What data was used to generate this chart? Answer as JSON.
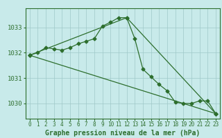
{
  "background_color": "#c8eaea",
  "grid_color": "#9fc8c8",
  "line_color": "#2d6e2d",
  "marker_color": "#2d6e2d",
  "xlabel": "Graphe pression niveau de la mer (hPa)",
  "xlabel_fontsize": 7,
  "ylabel_fontsize": 6.5,
  "tick_fontsize": 5.5,
  "ylim": [
    1029.4,
    1033.75
  ],
  "yticks": [
    1030,
    1031,
    1032,
    1033
  ],
  "xticks": [
    0,
    1,
    2,
    3,
    4,
    5,
    6,
    7,
    8,
    9,
    10,
    11,
    12,
    13,
    14,
    15,
    16,
    17,
    18,
    19,
    20,
    21,
    22,
    23
  ],
  "series1_x": [
    0,
    1,
    2,
    3,
    4,
    5,
    6,
    7,
    8,
    9,
    10,
    11,
    12,
    13,
    14,
    15,
    16,
    17,
    18,
    19,
    20,
    21,
    22,
    23
  ],
  "series1_y": [
    1031.9,
    1032.0,
    1032.2,
    1032.15,
    1032.1,
    1032.2,
    1032.35,
    1032.45,
    1032.55,
    1033.05,
    1033.2,
    1033.38,
    1033.38,
    1032.55,
    1031.35,
    1031.05,
    1030.75,
    1030.5,
    1030.05,
    1030.0,
    1030.0,
    1030.1,
    1030.1,
    1029.6
  ],
  "series2_x": [
    0,
    12,
    23
  ],
  "series2_y": [
    1031.9,
    1033.38,
    1029.6
  ],
  "series3_x": [
    0,
    23
  ],
  "series3_y": [
    1031.9,
    1029.6
  ]
}
